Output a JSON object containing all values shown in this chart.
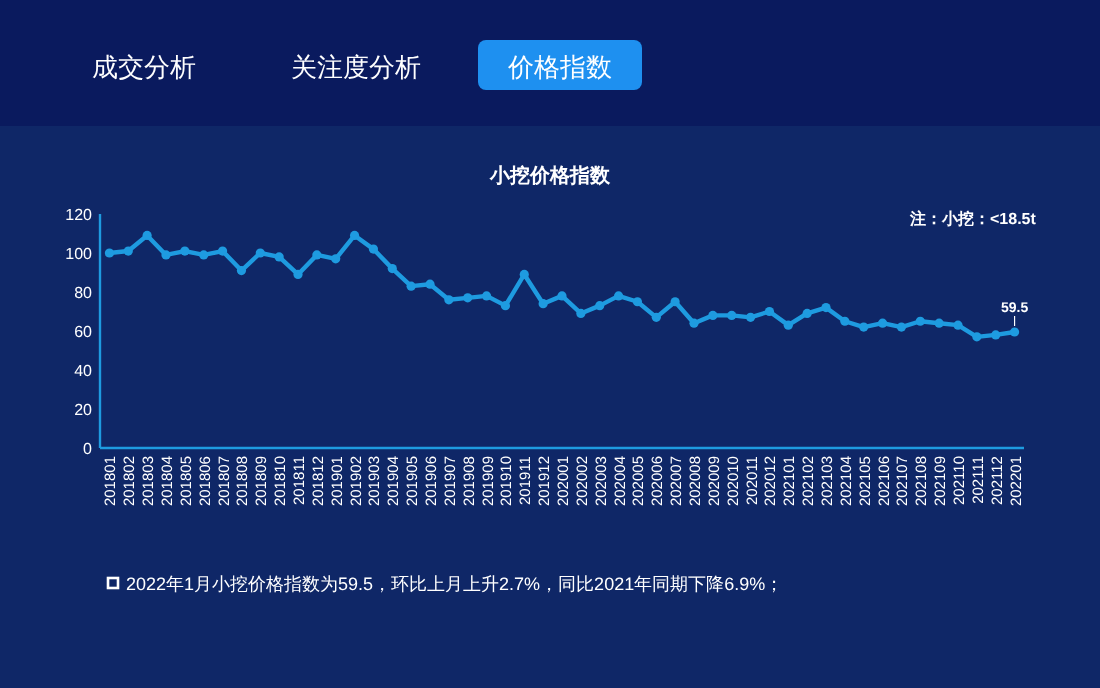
{
  "chart_data": {
    "type": "line",
    "title": "小挖价格指数",
    "annotations": [
      "成交分析",
      "关注度分析",
      "价格指数",
      "注：小挖：<18.5t",
      "2022年1月小挖价格指数为59.5，环比上月上升2.7%，同比2021年同期下降6.9%；"
    ],
    "categories": [
      "201801",
      "201802",
      "201803",
      "201804",
      "201805",
      "201806",
      "201807",
      "201808",
      "201809",
      "201810",
      "201811",
      "201812",
      "201901",
      "201902",
      "201903",
      "201904",
      "201905",
      "201906",
      "201907",
      "201908",
      "201909",
      "201910",
      "201911",
      "201912",
      "202001",
      "202002",
      "202003",
      "202004",
      "202005",
      "202006",
      "202007",
      "202008",
      "202009",
      "202010",
      "202011",
      "202012",
      "202101",
      "202102",
      "202103",
      "202104",
      "202105",
      "202106",
      "202107",
      "202108",
      "202109",
      "202110",
      "202111",
      "202112",
      "202201"
    ],
    "series": [
      {
        "color": "#1e9be0",
        "values": [
          100,
          101,
          109,
          99,
          101,
          99,
          101,
          91,
          100,
          98,
          89,
          99,
          97,
          109,
          102,
          92,
          83,
          84,
          76,
          77,
          78,
          73,
          89,
          74,
          78,
          69,
          73,
          78,
          75,
          67,
          75,
          64,
          68,
          68,
          67,
          70,
          63,
          69,
          72,
          65,
          62,
          64,
          62,
          65,
          64,
          63,
          57,
          58,
          59.5
        ],
        "value_labels": [
          null,
          null,
          null,
          null,
          null,
          null,
          null,
          null,
          null,
          null,
          null,
          null,
          null,
          null,
          null,
          null,
          null,
          null,
          null,
          null,
          null,
          null,
          null,
          null,
          null,
          null,
          null,
          null,
          null,
          null,
          null,
          null,
          null,
          null,
          null,
          null,
          null,
          null,
          null,
          null,
          null,
          null,
          null,
          null,
          null,
          null,
          null,
          null,
          "59.5"
        ]
      }
    ],
    "ylim": [
      0,
      120
    ],
    "yticks": [
      0,
      20,
      40,
      60,
      80,
      100,
      120
    ],
    "grid": false,
    "marker": "circle",
    "line_style": "solid"
  }
}
